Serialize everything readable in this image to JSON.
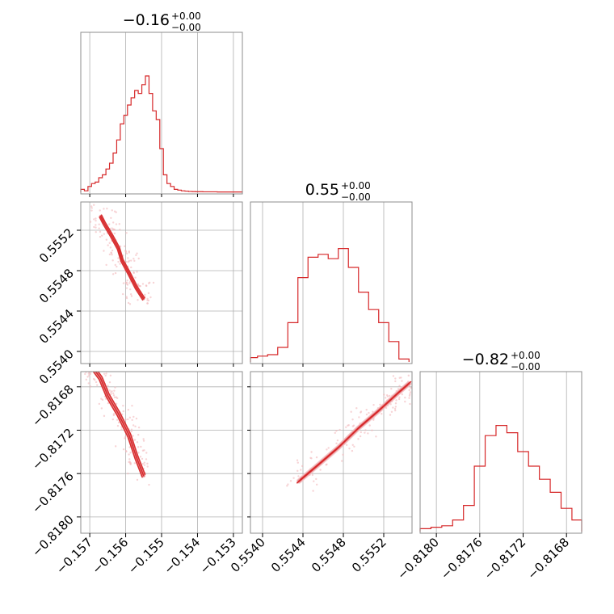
{
  "chart_data": {
    "type": "corner",
    "title": "",
    "colors": {
      "line": "#d62728",
      "fill_light": "#f3c4c6",
      "fill_mid": "#e8858a",
      "scatter": "#f2b8bb",
      "grid": "#b0b0b0",
      "frame": "#8c8c8c"
    },
    "grid": true,
    "params": [
      {
        "summary": {
          "median": "−0.16",
          "plus": "+0.00",
          "minus": "−0.00"
        },
        "range": [
          -0.15725,
          -0.15275
        ],
        "ticks": [
          -0.157,
          -0.156,
          -0.155,
          -0.154,
          -0.153
        ],
        "tick_labels": [
          "−0.157",
          "−0.156",
          "−0.155",
          "−0.154",
          "−0.153"
        ],
        "histogram": {
          "bins": [
            -0.1572,
            -0.1571,
            -0.157,
            -0.1569,
            -0.1568,
            -0.1567,
            -0.1566,
            -0.1565,
            -0.1564,
            -0.1563,
            -0.1562,
            -0.1561,
            -0.156,
            -0.1559,
            -0.1558,
            -0.1557,
            -0.1556,
            -0.1555,
            -0.1554,
            -0.1553,
            -0.1552,
            -0.1551,
            -0.155,
            -0.1549,
            -0.1548,
            -0.1547,
            -0.1546,
            -0.1545,
            -0.1544,
            -0.1543,
            -0.1542,
            -0.1541,
            -0.154,
            -0.1539,
            -0.1538,
            -0.1537,
            -0.1536,
            -0.1535,
            -0.1534,
            -0.1533,
            -0.1532,
            -0.1531,
            -0.153,
            -0.1529,
            -0.1528
          ],
          "heights": [
            0.02,
            0.01,
            0.04,
            0.06,
            0.07,
            0.1,
            0.12,
            0.16,
            0.2,
            0.27,
            0.36,
            0.47,
            0.53,
            0.6,
            0.65,
            0.7,
            0.68,
            0.74,
            0.8,
            0.68,
            0.56,
            0.5,
            0.3,
            0.12,
            0.06,
            0.04,
            0.02,
            0.015,
            0.01,
            0.008,
            0.006,
            0.005,
            0.004,
            0.004,
            0.003,
            0.003,
            0.003,
            0.003,
            0.002,
            0.002,
            0.002,
            0.002,
            0.002,
            0.002,
            0.002
          ]
        }
      },
      {
        "summary": {
          "median": "0.55",
          "plus": "+0.00",
          "minus": "−0.00"
        },
        "range": [
          0.55388,
          0.55548
        ],
        "ticks": [
          0.554,
          0.5544,
          0.5548,
          0.5552
        ],
        "tick_labels": [
          "0.5540",
          "0.5544",
          "0.5548",
          "0.5552"
        ],
        "histogram": {
          "bins": [
            0.5539,
            0.554,
            0.5541,
            0.5542,
            0.5543,
            0.5544,
            0.5545,
            0.5546,
            0.5547,
            0.5548,
            0.5549,
            0.555,
            0.5551,
            0.5552,
            0.5553,
            0.5554
          ],
          "heights": [
            0.03,
            0.04,
            0.05,
            0.1,
            0.27,
            0.58,
            0.72,
            0.74,
            0.71,
            0.78,
            0.65,
            0.48,
            0.36,
            0.27,
            0.14,
            0.02
          ]
        }
      },
      {
        "summary": {
          "median": "−0.82",
          "plus": "+0.00",
          "minus": "−0.00"
        },
        "range": [
          -0.81815,
          -0.81666
        ],
        "ticks": [
          -0.818,
          -0.8176,
          -0.8172,
          -0.8168
        ],
        "tick_labels": [
          "−0.8180",
          "−0.8176",
          "−0.8172",
          "−0.8168"
        ],
        "histogram": {
          "bins": [
            -0.8181,
            -0.818,
            -0.8179,
            -0.8178,
            -0.8177,
            -0.8176,
            -0.8175,
            -0.8174,
            -0.8173,
            -0.8172,
            -0.8171,
            -0.817,
            -0.8169,
            -0.8168,
            -0.8167
          ],
          "heights": [
            0.02,
            0.03,
            0.04,
            0.08,
            0.18,
            0.45,
            0.66,
            0.73,
            0.68,
            0.55,
            0.45,
            0.36,
            0.27,
            0.16,
            0.08
          ]
        }
      }
    ],
    "pairs": [
      {
        "x": 0,
        "y": 1,
        "ridge": [
          [
            -0.1567,
            0.55534
          ],
          [
            -0.1566,
            0.55527
          ],
          [
            -0.1564,
            0.55515
          ],
          [
            -0.1562,
            0.55502
          ],
          [
            -0.1561,
            0.5549
          ],
          [
            -0.1559,
            0.55477
          ],
          [
            -0.1557,
            0.55463
          ],
          [
            -0.1555,
            0.55452
          ]
        ],
        "width": 8e-05
      },
      {
        "x": 0,
        "y": 2,
        "ridge": [
          [
            -0.1569,
            -0.81663
          ],
          [
            -0.1567,
            -0.81672
          ],
          [
            -0.1565,
            -0.81688
          ],
          [
            -0.1562,
            -0.81705
          ],
          [
            -0.1559,
            -0.81725
          ],
          [
            -0.1557,
            -0.81745
          ],
          [
            -0.1555,
            -0.81762
          ]
        ],
        "width": 0.00011
      },
      {
        "x": 1,
        "y": 2,
        "ridge": [
          [
            0.55436,
            -0.81767
          ],
          [
            0.55455,
            -0.81752
          ],
          [
            0.55475,
            -0.81736
          ],
          [
            0.55495,
            -0.81718
          ],
          [
            0.55515,
            -0.81702
          ],
          [
            0.55535,
            -0.81685
          ],
          [
            0.55545,
            -0.81677
          ]
        ],
        "width": 5e-05
      }
    ]
  }
}
